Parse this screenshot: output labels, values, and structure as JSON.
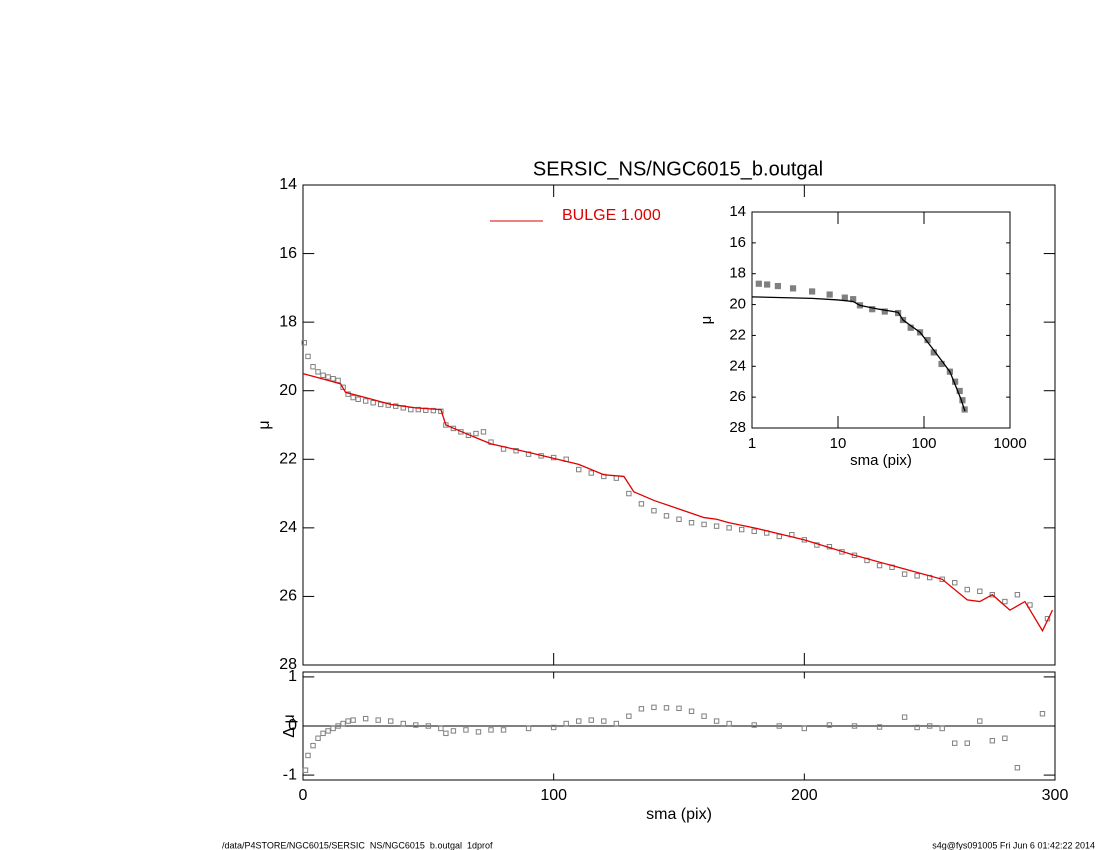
{
  "chart_data": [
    {
      "type": "scatter",
      "title": "SERSIC_NS/NGC6015_b.outgal",
      "ylabel": "μ",
      "xlim": [
        0,
        300
      ],
      "xticks": [
        0,
        100,
        200,
        300
      ],
      "ylim": [
        14,
        28
      ],
      "yticks": [
        14,
        16,
        18,
        20,
        22,
        24,
        26,
        28
      ],
      "yreversed": true,
      "legend": "top",
      "series": [
        {
          "style": "markers",
          "color": "#808080",
          "x": [
            0.5,
            2,
            4,
            6,
            8,
            10,
            12,
            14,
            16,
            18,
            20,
            22,
            25,
            28,
            31,
            34,
            37,
            40,
            43,
            46,
            49,
            52,
            55,
            57,
            60,
            63,
            66,
            69,
            72,
            75,
            80,
            85,
            90,
            95,
            100,
            105,
            110,
            115,
            120,
            125,
            130,
            135,
            140,
            145,
            150,
            155,
            160,
            165,
            170,
            175,
            180,
            185,
            190,
            195,
            200,
            205,
            210,
            215,
            220,
            225,
            230,
            235,
            240,
            245,
            250,
            255,
            260,
            265,
            270,
            275,
            280,
            285,
            290,
            297
          ],
          "values": [
            18.6,
            19.0,
            19.3,
            19.45,
            19.55,
            19.6,
            19.65,
            19.7,
            19.9,
            20.1,
            20.2,
            20.25,
            20.3,
            20.35,
            20.4,
            20.42,
            20.45,
            20.5,
            20.55,
            20.55,
            20.57,
            20.58,
            20.6,
            21.0,
            21.1,
            21.2,
            21.3,
            21.25,
            21.2,
            21.5,
            21.7,
            21.75,
            21.85,
            21.9,
            21.95,
            22.0,
            22.3,
            22.4,
            22.5,
            22.55,
            23.0,
            23.3,
            23.5,
            23.65,
            23.75,
            23.85,
            23.9,
            23.95,
            24.0,
            24.05,
            24.1,
            24.15,
            24.25,
            24.2,
            24.35,
            24.5,
            24.55,
            24.7,
            24.8,
            24.95,
            25.1,
            25.15,
            25.35,
            25.4,
            25.45,
            25.5,
            25.6,
            25.8,
            25.85,
            25.95,
            26.15,
            25.95,
            26.25,
            26.65
          ]
        },
        {
          "name": "BULGE  1.000",
          "style": "line",
          "color": "#e00000",
          "x": [
            0,
            10,
            15,
            17,
            25,
            35,
            45,
            55,
            57,
            65,
            70,
            75,
            90,
            110,
            120,
            128,
            132,
            140,
            150,
            160,
            165,
            170,
            180,
            200,
            220,
            240,
            255,
            265,
            270,
            275,
            282,
            288,
            295,
            299
          ],
          "values": [
            19.5,
            19.7,
            19.8,
            20.05,
            20.2,
            20.4,
            20.5,
            20.55,
            21.0,
            21.25,
            21.4,
            21.55,
            21.8,
            22.15,
            22.45,
            22.5,
            22.95,
            23.2,
            23.45,
            23.7,
            23.75,
            23.85,
            24.0,
            24.35,
            24.8,
            25.2,
            25.5,
            26.1,
            26.15,
            25.95,
            26.4,
            26.15,
            27.0,
            26.4
          ]
        }
      ]
    },
    {
      "type": "scatter",
      "ylabel": "Δ μ",
      "xlabel": "sma (pix)",
      "xlim": [
        0,
        300
      ],
      "xticks": [
        0,
        100,
        200,
        300
      ],
      "ylim": [
        -1.1,
        1.1
      ],
      "yticks": [
        -1,
        0,
        1
      ],
      "zeroline": true,
      "series": [
        {
          "style": "markers",
          "color": "#808080",
          "x": [
            1,
            2,
            4,
            6,
            8,
            10,
            12,
            14,
            16,
            18,
            20,
            25,
            30,
            35,
            40,
            45,
            50,
            55,
            57,
            60,
            65,
            70,
            75,
            80,
            90,
            100,
            105,
            110,
            115,
            120,
            125,
            130,
            135,
            140,
            145,
            150,
            155,
            160,
            165,
            170,
            180,
            190,
            200,
            210,
            220,
            230,
            240,
            245,
            250,
            255,
            260,
            265,
            270,
            275,
            280,
            285,
            295
          ],
          "values": [
            -0.9,
            -0.6,
            -0.4,
            -0.25,
            -0.15,
            -0.1,
            -0.05,
            0,
            0.05,
            0.1,
            0.12,
            0.15,
            0.12,
            0.1,
            0.05,
            0.02,
            0,
            -0.05,
            -0.15,
            -0.1,
            -0.08,
            -0.12,
            -0.08,
            -0.08,
            -0.05,
            -0.03,
            0.05,
            0.1,
            0.12,
            0.1,
            0.05,
            0.2,
            0.35,
            0.38,
            0.37,
            0.36,
            0.3,
            0.2,
            0.1,
            0.05,
            0.02,
            0.0,
            -0.05,
            0.02,
            0.0,
            -0.02,
            0.18,
            -0.03,
            0.0,
            -0.05,
            -0.35,
            -0.35,
            0.1,
            -0.3,
            -0.25,
            -0.85,
            0.25
          ]
        }
      ]
    },
    {
      "type": "scatter",
      "ylabel": "μ",
      "xlabel": "sma (pix)",
      "xlog": true,
      "xlim": [
        1,
        1000
      ],
      "xticks": [
        1,
        10,
        100,
        1000
      ],
      "ylim": [
        14,
        28
      ],
      "yticks": [
        14,
        16,
        18,
        20,
        22,
        24,
        26,
        28
      ],
      "yreversed": true,
      "series": [
        {
          "style": "markers",
          "color": "#808080",
          "x": [
            1.2,
            1.5,
            2,
            3,
            5,
            8,
            12,
            15,
            18,
            25,
            35,
            50,
            57,
            70,
            90,
            110,
            130,
            160,
            200,
            230,
            260,
            280,
            297
          ],
          "values": [
            18.65,
            18.7,
            18.8,
            18.95,
            19.15,
            19.35,
            19.55,
            19.65,
            20.05,
            20.3,
            20.45,
            20.55,
            21.0,
            21.5,
            21.8,
            22.3,
            23.1,
            23.85,
            24.35,
            25.0,
            25.6,
            26.2,
            26.8
          ]
        },
        {
          "style": "line",
          "color": "#000000",
          "x": [
            1,
            5,
            10,
            15,
            18,
            30,
            50,
            57,
            90,
            130,
            200,
            270,
            299
          ],
          "values": [
            19.5,
            19.6,
            19.7,
            19.8,
            20.05,
            20.3,
            20.5,
            21.0,
            21.8,
            22.95,
            24.35,
            26.15,
            26.9
          ]
        }
      ]
    }
  ],
  "footer": {
    "left": "/data/P4STORE/NGC6015/SERSIC_NS/NGC6015_b.outgal_1dprof",
    "right": "s4g@fys091005  Fri Jun  6 01:42:22 2014"
  }
}
